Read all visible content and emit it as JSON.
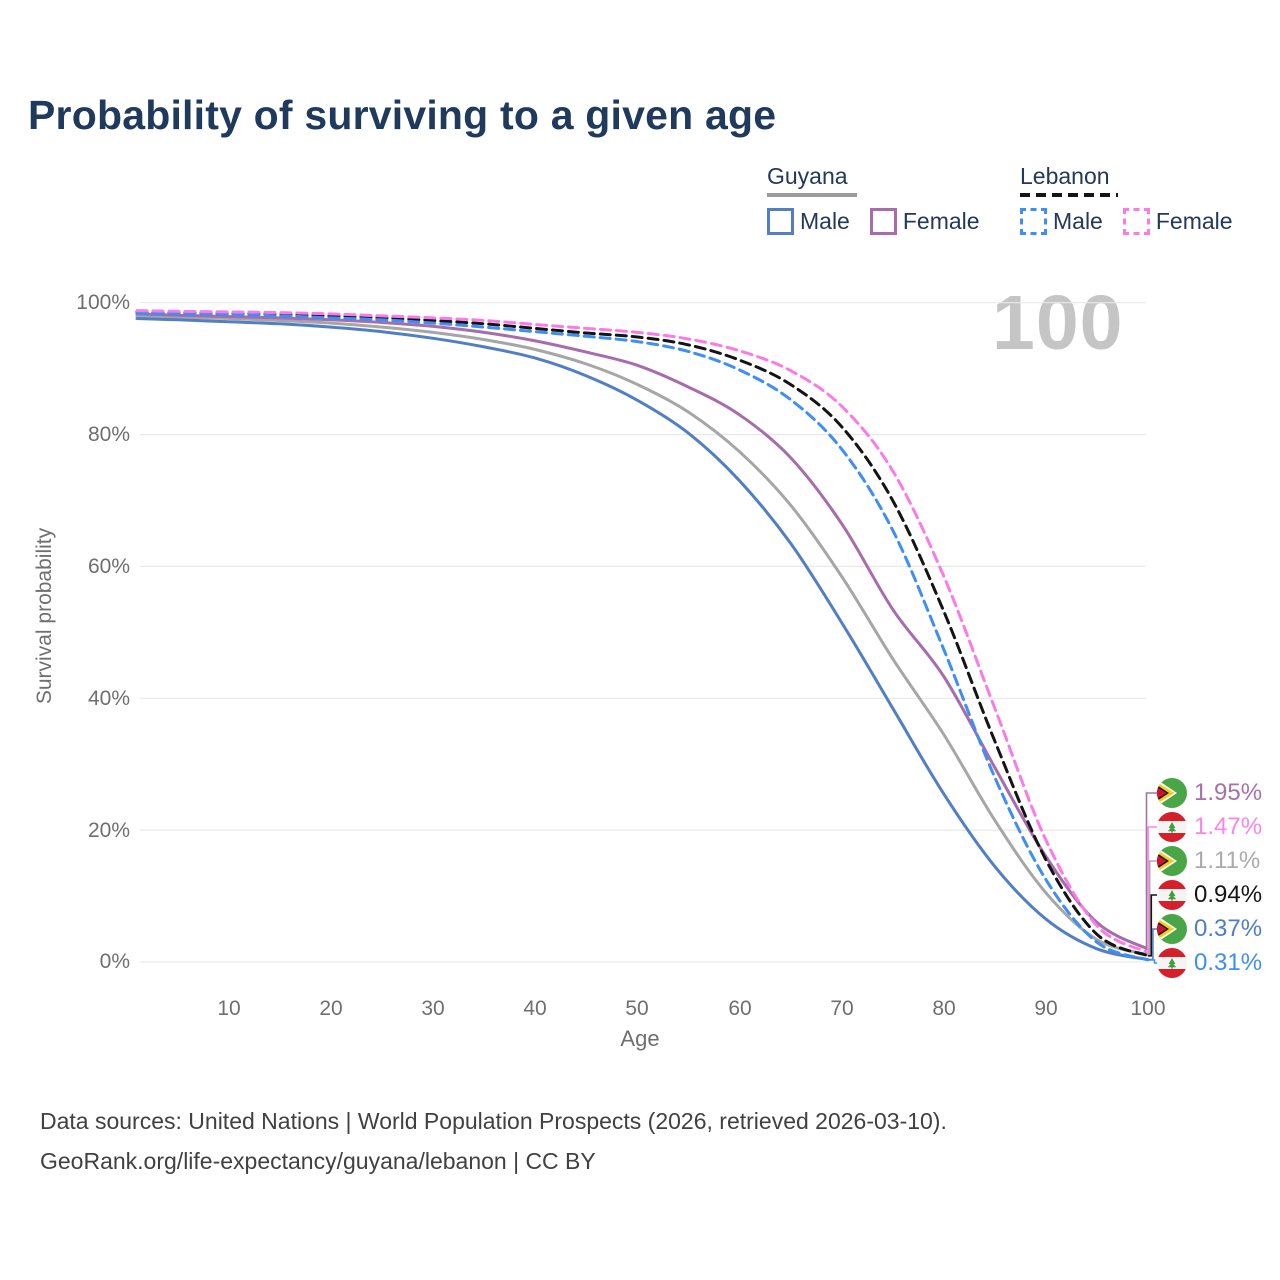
{
  "title": "Probability of surviving to a given age",
  "watermark": "100",
  "legend": {
    "groups": [
      {
        "label": "Guyana",
        "line_style": "solid",
        "items": [
          {
            "label": "Male",
            "color": "#527fc4"
          },
          {
            "label": "Female",
            "color": "#a76cab"
          }
        ]
      },
      {
        "label": "Lebanon",
        "line_style": "dashed",
        "items": [
          {
            "label": "Male",
            "color": "#3e8ef4"
          },
          {
            "label": "Female",
            "color": "#fb7be6"
          }
        ]
      }
    ]
  },
  "axes": {
    "y_label": "Survival probability",
    "x_label": "Age",
    "y_ticks": [
      "100%",
      "80%",
      "60%",
      "40%",
      "20%",
      "0%"
    ],
    "x_ticks": [
      "10",
      "20",
      "30",
      "40",
      "50",
      "60",
      "70",
      "80",
      "90",
      "100"
    ]
  },
  "end_labels": [
    {
      "value": "1.95%",
      "series": "Guyana Female",
      "series_key": "guyana_female",
      "flag": "guyana",
      "color": "#a472a9"
    },
    {
      "value": "1.47%",
      "series": "Lebanon Female",
      "series_key": "lebanon_female",
      "flag": "lebanon",
      "color": "#fb85e9"
    },
    {
      "value": "1.11%",
      "series": "Guyana Both sexes",
      "series_key": "guyana_both",
      "flag": "guyana",
      "color": "#ababab"
    },
    {
      "value": "0.94%",
      "series": "Lebanon Both sexes",
      "series_key": "lebanon_both",
      "flag": "lebanon",
      "color": "#161616"
    },
    {
      "value": "0.37%",
      "series": "Guyana Male",
      "series_key": "guyana_male",
      "flag": "guyana",
      "color": "#4e7dc6"
    },
    {
      "value": "0.31%",
      "series": "Lebanon Male",
      "series_key": "lebanon_male",
      "flag": "lebanon",
      "color": "#3e8ef4"
    }
  ],
  "footer": {
    "line1": "Data sources: United Nations | World Population Prospects (2026, retrieved 2026-03-10).",
    "line2": "GeoRank.org/life-expectancy/guyana/lebanon | CC BY"
  },
  "chart_data": {
    "type": "line",
    "title": "Probability of surviving to a given age",
    "xlabel": "Age",
    "ylabel": "Survival probability",
    "xlim": [
      1,
      100
    ],
    "ylim_pct": [
      0,
      100
    ],
    "grid": "horizontal lines every 20%",
    "legend_position": "top-right",
    "ages": [
      1,
      5,
      10,
      15,
      20,
      25,
      30,
      35,
      40,
      45,
      50,
      55,
      60,
      65,
      70,
      75,
      80,
      85,
      90,
      95,
      100
    ],
    "series": [
      {
        "key": "guyana_both",
        "name": "Guyana Both sexes",
        "style": "solid",
        "color": "#a6a6a6",
        "values": [
          98.0,
          97.8,
          97.6,
          97.3,
          96.9,
          96.3,
          95.5,
          94.4,
          92.9,
          90.7,
          87.6,
          83.4,
          77.4,
          69.3,
          58.5,
          46.0,
          34.5,
          21.5,
          10.5,
          3.4,
          1.11
        ],
        "end_label": "1.11%"
      },
      {
        "key": "guyana_female",
        "name": "Guyana Female",
        "style": "solid",
        "color": "#a76cab",
        "values": [
          98.3,
          98.1,
          97.9,
          97.7,
          97.4,
          97.0,
          96.4,
          95.5,
          94.2,
          92.5,
          90.5,
          87.2,
          83.0,
          76.5,
          66.5,
          53.5,
          43.3,
          29.5,
          16.0,
          6.0,
          1.95
        ],
        "end_label": "1.95%"
      },
      {
        "key": "guyana_male",
        "name": "Guyana Male",
        "style": "solid",
        "color": "#527fc4",
        "values": [
          97.6,
          97.4,
          97.1,
          96.8,
          96.3,
          95.6,
          94.6,
          93.3,
          91.6,
          88.9,
          85.2,
          80.2,
          73.0,
          63.5,
          51.5,
          38.5,
          25.5,
          14.5,
          6.5,
          2.0,
          0.37
        ],
        "end_label": "0.37%"
      },
      {
        "key": "lebanon_both",
        "name": "Lebanon Both sexes",
        "style": "dashed",
        "color": "#141414",
        "values": [
          98.6,
          98.5,
          98.4,
          98.2,
          98.0,
          97.7,
          97.3,
          96.8,
          96.1,
          95.4,
          94.8,
          93.6,
          91.3,
          87.6,
          81.2,
          70.0,
          53.2,
          33.5,
          15.5,
          4.2,
          0.94
        ],
        "end_label": "0.94%"
      },
      {
        "key": "lebanon_male",
        "name": "Lebanon Male",
        "style": "dashed",
        "color": "#3e8ef4",
        "values": [
          98.4,
          98.3,
          98.2,
          98.0,
          97.7,
          97.4,
          96.9,
          96.3,
          95.6,
          94.9,
          94.1,
          92.6,
          89.8,
          85.3,
          77.8,
          65.5,
          47.4,
          28.0,
          12.5,
          3.0,
          0.31
        ],
        "end_label": "0.31%"
      },
      {
        "key": "lebanon_female",
        "name": "Lebanon Female",
        "style": "dashed",
        "color": "#fb7be6",
        "values": [
          98.8,
          98.7,
          98.6,
          98.5,
          98.3,
          98.0,
          97.7,
          97.3,
          96.7,
          96.1,
          95.5,
          94.5,
          92.7,
          89.7,
          84.3,
          74.5,
          58.5,
          38.5,
          18.5,
          5.5,
          1.47
        ],
        "end_label": "1.47%"
      }
    ]
  }
}
